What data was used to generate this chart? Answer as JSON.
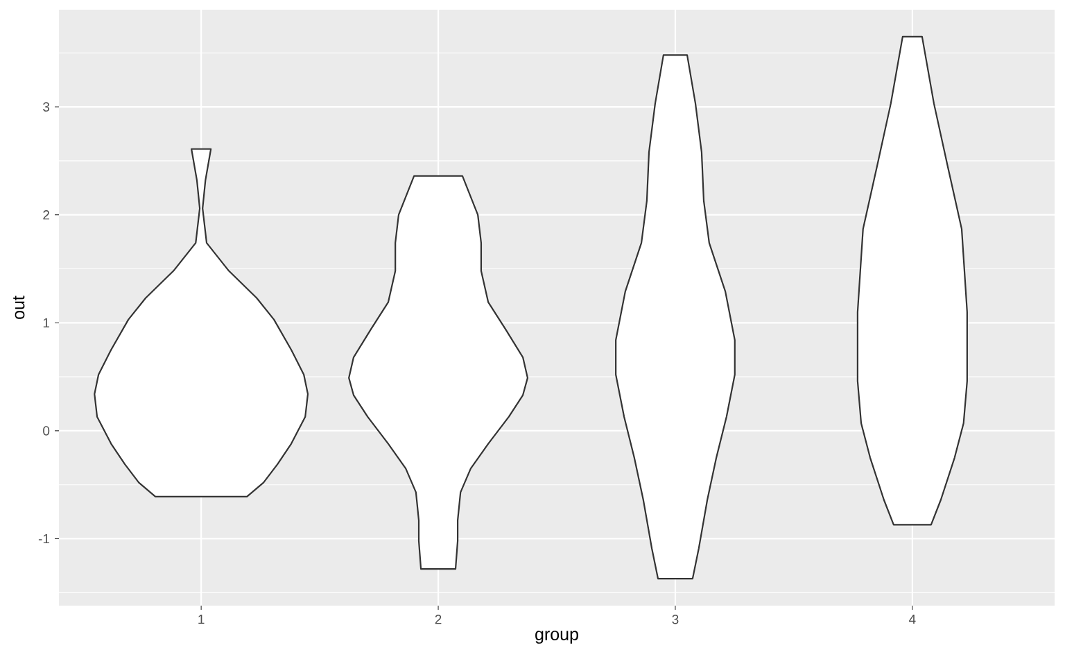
{
  "chart_data": {
    "type": "area",
    "xlabel": "group",
    "ylabel": "out",
    "xlim": [
      0.4,
      4.6
    ],
    "xticks": [
      1,
      2,
      3,
      4
    ],
    "ylim": [
      -1.62,
      3.9
    ],
    "yticks": [
      {
        "value": -1.5,
        "label": null
      },
      -1,
      {
        "value": -0.5,
        "label": null
      },
      0,
      {
        "value": 0.5,
        "label": null
      },
      1,
      {
        "value": 1.5,
        "label": null
      },
      2,
      {
        "value": 2.5,
        "label": null
      },
      3,
      {
        "value": 3.5,
        "label": null
      }
    ],
    "grid": true,
    "series": [
      {
        "color": "#333333",
        "x": [
          0.807,
          0.737,
          0.678,
          0.62,
          0.561,
          0.55,
          0.567,
          0.62,
          0.693,
          0.766,
          0.883,
          0.977,
          0.994,
          0.982,
          0.959,
          1.041,
          1.018,
          1.006,
          1.023,
          1.117,
          1.234,
          1.307,
          1.38,
          1.433,
          1.45,
          1.439,
          1.38,
          1.322,
          1.263,
          1.193
        ],
        "values": [
          -0.61,
          -0.48,
          -0.31,
          -0.12,
          0.13,
          0.34,
          0.52,
          0.75,
          1.03,
          1.23,
          1.48,
          1.74,
          2.06,
          2.32,
          2.61,
          2.61,
          2.32,
          2.06,
          1.74,
          1.48,
          1.23,
          1.03,
          0.75,
          0.52,
          0.34,
          0.13,
          -0.12,
          -0.31,
          -0.48,
          -0.61
        ]
      },
      {
        "color": "#333333",
        "x": [
          1.927,
          1.918,
          1.918,
          1.906,
          1.863,
          1.789,
          1.702,
          1.643,
          1.623,
          1.643,
          1.716,
          1.789,
          1.819,
          1.819,
          1.833,
          1.898,
          2.102,
          2.167,
          2.181,
          2.181,
          2.211,
          2.284,
          2.357,
          2.377,
          2.357,
          2.298,
          2.211,
          2.137,
          2.094,
          2.082,
          2.082,
          2.073
        ],
        "values": [
          -1.28,
          -1.02,
          -0.83,
          -0.57,
          -0.35,
          -0.12,
          0.13,
          0.33,
          0.49,
          0.68,
          0.94,
          1.19,
          1.48,
          1.74,
          2.0,
          2.36,
          2.36,
          2.0,
          1.74,
          1.48,
          1.19,
          0.94,
          0.68,
          0.49,
          0.33,
          0.13,
          -0.12,
          -0.35,
          -0.57,
          -0.83,
          -1.02,
          -1.28
        ]
      },
      {
        "color": "#333333",
        "x": [
          2.927,
          2.901,
          2.865,
          2.827,
          2.784,
          2.749,
          2.749,
          2.789,
          2.857,
          2.88,
          2.889,
          2.915,
          2.95,
          3.05,
          3.085,
          3.111,
          3.12,
          3.143,
          3.211,
          3.251,
          3.251,
          3.216,
          3.173,
          3.135,
          3.099,
          3.073
        ],
        "values": [
          -1.37,
          -1.09,
          -0.64,
          -0.25,
          0.13,
          0.52,
          0.84,
          1.29,
          1.74,
          2.13,
          2.58,
          3.03,
          3.48,
          3.48,
          3.03,
          2.58,
          2.13,
          1.74,
          1.29,
          0.84,
          0.52,
          0.13,
          -0.25,
          -0.64,
          -1.09,
          -1.37
        ]
      },
      {
        "color": "#333333",
        "x": [
          3.921,
          3.88,
          3.822,
          3.784,
          3.769,
          3.769,
          3.792,
          3.851,
          3.909,
          3.959,
          4.041,
          4.091,
          4.149,
          4.208,
          4.231,
          4.231,
          4.216,
          4.178,
          4.12,
          4.079
        ],
        "values": [
          -0.87,
          -0.64,
          -0.25,
          0.07,
          0.46,
          1.1,
          1.87,
          2.45,
          3.03,
          3.65,
          3.65,
          3.03,
          2.45,
          1.87,
          1.1,
          0.46,
          0.07,
          -0.25,
          -0.64,
          -0.87
        ]
      }
    ]
  }
}
